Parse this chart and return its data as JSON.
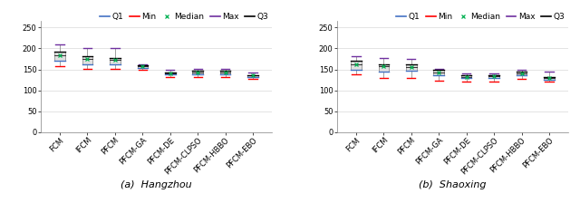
{
  "hangzhou": {
    "categories": [
      "FCM",
      "IFCM",
      "PFCM",
      "PFCM-GA",
      "PFCM-DE",
      "PFCM-CLPSO",
      "PFCM-HBBO",
      "PFCM-EBO"
    ],
    "q1": [
      170,
      163,
      163,
      153,
      138,
      138,
      138,
      132
    ],
    "median": [
      183,
      175,
      172,
      157,
      141,
      143,
      142,
      135
    ],
    "q3": [
      193,
      182,
      178,
      160,
      143,
      146,
      146,
      137
    ],
    "min": [
      157,
      152,
      152,
      148,
      131,
      131,
      132,
      128
    ],
    "max": [
      210,
      202,
      200,
      163,
      148,
      151,
      151,
      142
    ],
    "subtitle": "(a)  Hangzhou"
  },
  "shaoxing": {
    "categories": [
      "FCM",
      "IFCM",
      "PFCM",
      "PFCM-GA",
      "PFCM-DE",
      "PFCM-CLPSO",
      "PFCM-HBBO",
      "PFCM-EBO"
    ],
    "q1": [
      150,
      145,
      147,
      136,
      129,
      130,
      136,
      126
    ],
    "median": [
      163,
      158,
      155,
      143,
      132,
      133,
      140,
      129
    ],
    "q3": [
      170,
      163,
      162,
      148,
      135,
      136,
      144,
      132
    ],
    "min": [
      138,
      130,
      130,
      122,
      120,
      120,
      128,
      120
    ],
    "max": [
      182,
      178,
      175,
      152,
      140,
      141,
      150,
      145
    ],
    "subtitle": "(b)  Shaoxing"
  },
  "ylim": [
    0,
    265
  ],
  "yticks": [
    0,
    50,
    100,
    150,
    200,
    250
  ],
  "legend_entries": [
    "Q1",
    "Min",
    "Median",
    "Max",
    "Q3"
  ],
  "legend_colors": {
    "Q1": "#4472c4",
    "Min": "#ff0000",
    "Median": "#00b050",
    "Max": "#7030a0",
    "Q3": "#000000"
  },
  "box_facecolor": "#e0e0e0",
  "box_edgecolor": "#909090",
  "whisker_color": "#909090",
  "subtitle_fontsize": 8,
  "tick_fontsize": 6,
  "legend_fontsize": 6.5
}
